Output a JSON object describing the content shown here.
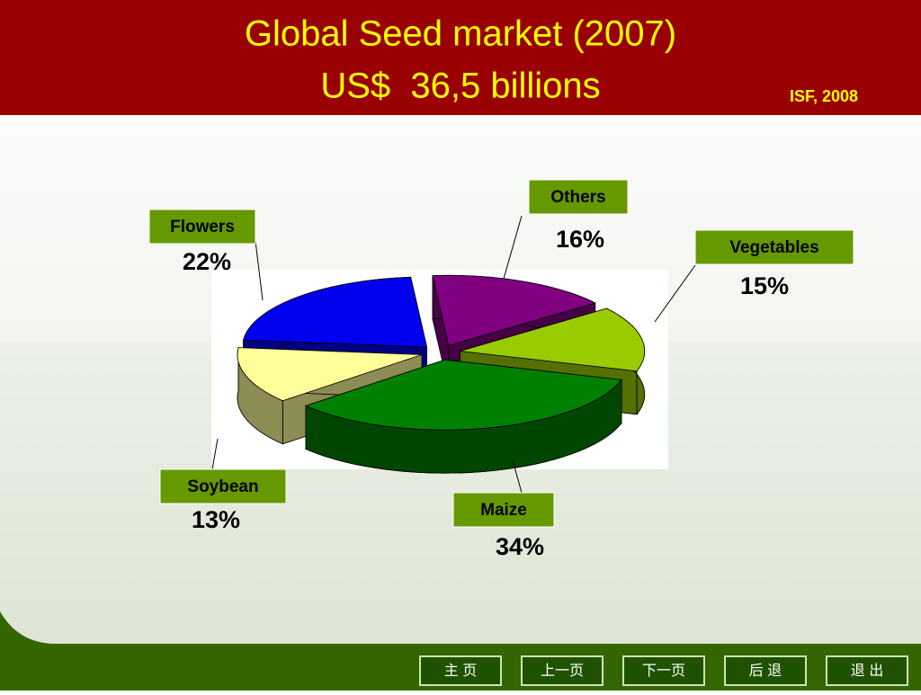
{
  "chart_data": {
    "type": "pie3d",
    "title": "Global Seed market (2007)",
    "subtitle": "US$  36,5 billions",
    "source": "ISF, 2008",
    "categories": [
      "Others",
      "Vegetables",
      "Maize",
      "Soybean",
      "Flowers"
    ],
    "values": [
      16,
      15,
      34,
      13,
      22
    ],
    "value_labels": [
      "16%",
      "15%",
      "34%",
      "13%",
      "22%"
    ],
    "colors": [
      "#800080",
      "#99cc00",
      "#008000",
      "#ffff99",
      "#0000ee"
    ]
  },
  "nav": {
    "buttons": [
      "主 页",
      "上一页",
      "下一页",
      "后 退",
      "退 出"
    ]
  }
}
